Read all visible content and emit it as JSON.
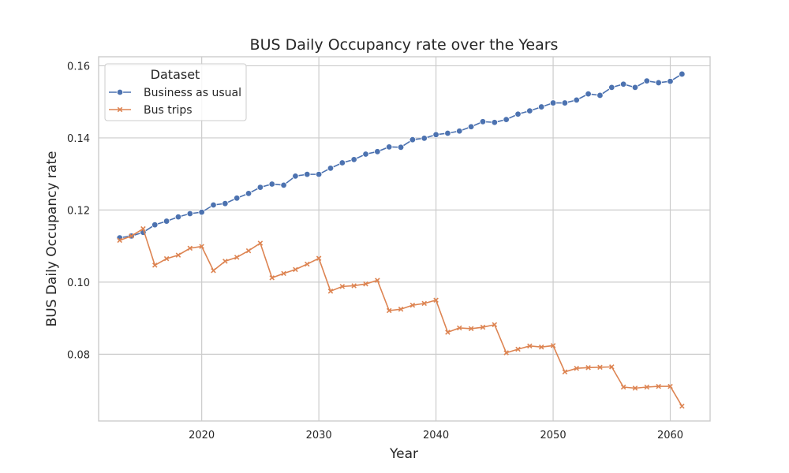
{
  "chart_data": {
    "type": "line",
    "title": "BUS Daily Occupancy rate over the Years",
    "xlabel": "Year",
    "ylabel": "BUS Daily Occupancy rate",
    "xlim": [
      2011.2,
      2063.4
    ],
    "ylim": [
      0.0615,
      0.1625
    ],
    "xticks": [
      2020,
      2030,
      2040,
      2050,
      2060
    ],
    "yticks": [
      0.08,
      0.1,
      0.12,
      0.14,
      0.16
    ],
    "grid": true,
    "legend": {
      "title": "Dataset",
      "placement": "top-left"
    },
    "x": [
      2013,
      2014,
      2015,
      2016,
      2017,
      2018,
      2019,
      2020,
      2021,
      2022,
      2023,
      2024,
      2025,
      2026,
      2027,
      2028,
      2029,
      2030,
      2031,
      2032,
      2033,
      2034,
      2035,
      2036,
      2037,
      2038,
      2039,
      2040,
      2041,
      2042,
      2043,
      2044,
      2045,
      2046,
      2047,
      2048,
      2049,
      2050,
      2051,
      2052,
      2053,
      2054,
      2055,
      2056,
      2057,
      2058,
      2059,
      2060,
      2061
    ],
    "series": [
      {
        "name": "Business as usual",
        "color": "#4c72b0",
        "marker": "circle",
        "values": [
          0.1123,
          0.1128,
          0.1138,
          0.1159,
          0.1169,
          0.1181,
          0.119,
          0.1194,
          0.1214,
          0.1218,
          0.1233,
          0.1246,
          0.1263,
          0.1272,
          0.1269,
          0.1294,
          0.1299,
          0.1299,
          0.1316,
          0.1331,
          0.134,
          0.1355,
          0.1362,
          0.1375,
          0.1374,
          0.1395,
          0.1399,
          0.1409,
          0.1413,
          0.1419,
          0.1431,
          0.1445,
          0.1443,
          0.1451,
          0.1466,
          0.1475,
          0.1486,
          0.1497,
          0.1497,
          0.1505,
          0.1522,
          0.1518,
          0.154,
          0.1549,
          0.154,
          0.1558,
          0.1553,
          0.1557,
          0.1577
        ]
      },
      {
        "name": "Bus trips",
        "color": "#dd8452",
        "marker": "x",
        "values": [
          0.1116,
          0.1128,
          0.1148,
          0.1047,
          0.1065,
          0.1075,
          0.1094,
          0.1099,
          0.1032,
          0.1058,
          0.1069,
          0.1087,
          0.1108,
          0.1012,
          0.1024,
          0.1035,
          0.105,
          0.1066,
          0.0975,
          0.0988,
          0.099,
          0.0995,
          0.1005,
          0.0921,
          0.0925,
          0.0936,
          0.0941,
          0.095,
          0.0861,
          0.0873,
          0.0871,
          0.0875,
          0.0882,
          0.0804,
          0.0814,
          0.0823,
          0.082,
          0.0824,
          0.0751,
          0.0761,
          0.0763,
          0.0764,
          0.0765,
          0.0709,
          0.0706,
          0.0709,
          0.0711,
          0.0711,
          0.0656
        ]
      }
    ]
  }
}
